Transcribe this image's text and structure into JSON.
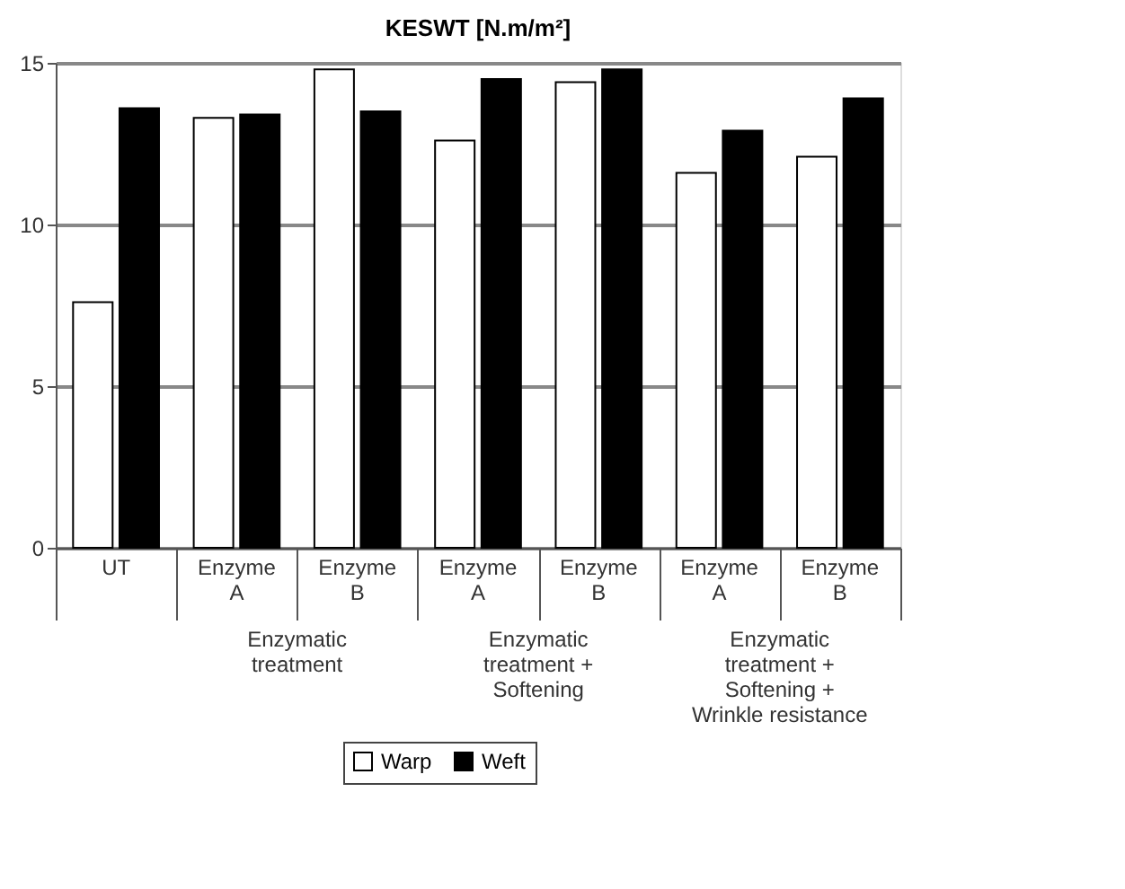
{
  "chart_data": {
    "type": "bar",
    "title": "KESWT [N.m/m²]",
    "categories": [
      "UT",
      "Enzyme A",
      "Enzyme B",
      "Enzyme A",
      "Enzyme B",
      "Enzyme A",
      "Enzyme B"
    ],
    "series": [
      {
        "name": "Warp",
        "color": "#ffffff",
        "values": [
          7.6,
          13.3,
          14.8,
          12.6,
          14.4,
          11.6,
          12.1
        ]
      },
      {
        "name": "Weft",
        "color": "#000000",
        "values": [
          13.6,
          13.4,
          13.5,
          14.5,
          14.8,
          12.9,
          13.9
        ]
      }
    ],
    "annotations": [
      "Enzymatic\ntreatment",
      "Enzymatic\ntreatment +\nSoftening",
      "Enzymatic\ntreatment +\nSoftening +\nWrinkle resistance"
    ],
    "ylim": [
      0,
      15
    ],
    "yticks": [
      0,
      5,
      10,
      15
    ],
    "grid": "y",
    "legend": "bottom"
  }
}
